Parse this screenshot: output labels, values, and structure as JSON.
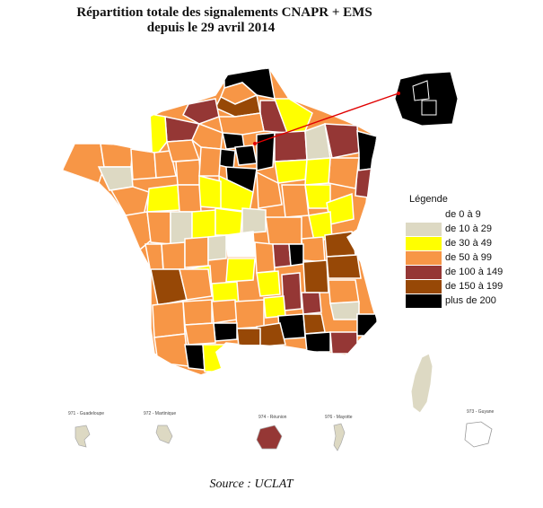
{
  "title_line1": "Répartition totale des signalements CNAPR + EMS",
  "title_line2": "depuis le 29 avril 2014",
  "legend": {
    "title": "Légende",
    "items": [
      {
        "label": "de 0 à 9",
        "color": "#ffffff"
      },
      {
        "label": "de 10 à 29",
        "color": "#ddd9c3"
      },
      {
        "label": "de 30 à 49",
        "color": "#ffff00"
      },
      {
        "label": "de 50 à 99",
        "color": "#f79646"
      },
      {
        "label": "de 100 à 149",
        "color": "#953735"
      },
      {
        "label": "de 150 à 199",
        "color": "#974806"
      },
      {
        "label": "plus de 200",
        "color": "#000000"
      }
    ]
  },
  "overseas": [
    {
      "label": "971 - Guadeloupe",
      "color": "#ddd9c3"
    },
    {
      "label": "972 - Martinique",
      "color": "#ddd9c3"
    },
    {
      "label": "974 - Réunion",
      "color": "#953735"
    },
    {
      "label": "976 - Mayotte",
      "color": "#ddd9c3"
    },
    {
      "label": "973 - Guyane",
      "color": "#ffffff"
    }
  ],
  "source": "Source : UCLAT"
}
